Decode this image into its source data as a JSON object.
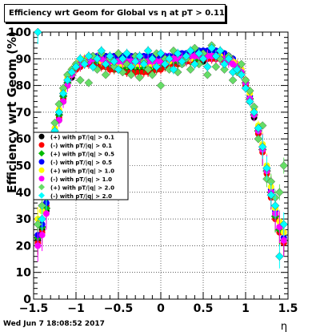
{
  "chart_data": {
    "type": "scatter",
    "title": "Efficiency wrt Geom for Global vs   η at pT > 0.11",
    "xlabel": "η",
    "ylabel": "Efficiency wrt Geom (%)",
    "xlim": [
      -1.5,
      1.5
    ],
    "ylim": [
      0,
      100
    ],
    "x_ticks": [
      -1.5,
      -1,
      -0.5,
      0,
      0.5,
      1,
      1.5
    ],
    "x_tick_labels": [
      "−1.5",
      "−1",
      "−0.5",
      "0",
      "0.5",
      "1",
      "1.5"
    ],
    "y_ticks": [
      0,
      10,
      20,
      30,
      40,
      50,
      60,
      70,
      80,
      90,
      100
    ],
    "y_tick_labels": [
      "0",
      "10",
      "20",
      "30",
      "40",
      "50",
      "60",
      "70",
      "80",
      "90",
      "100"
    ],
    "grid": true,
    "legend_position": "left-middle",
    "x": [
      -1.45,
      -1.4,
      -1.35,
      -1.3,
      -1.25,
      -1.2,
      -1.15,
      -1.1,
      -1.05,
      -1.0,
      -0.95,
      -0.9,
      -0.85,
      -0.8,
      -0.75,
      -0.7,
      -0.65,
      -0.6,
      -0.55,
      -0.5,
      -0.45,
      -0.4,
      -0.35,
      -0.3,
      -0.25,
      -0.2,
      -0.15,
      -0.1,
      -0.05,
      0.0,
      0.05,
      0.1,
      0.15,
      0.2,
      0.25,
      0.3,
      0.35,
      0.4,
      0.45,
      0.5,
      0.55,
      0.6,
      0.65,
      0.7,
      0.75,
      0.8,
      0.85,
      0.9,
      0.95,
      1.0,
      1.05,
      1.1,
      1.15,
      1.2,
      1.25,
      1.3,
      1.35,
      1.4,
      1.45
    ],
    "series": [
      {
        "name": "(+) with pT/|q| > 0.1",
        "color": "#000000",
        "values": [
          22,
          26,
          33,
          45,
          60,
          67,
          74,
          80,
          83,
          86,
          87,
          88,
          88,
          89,
          88,
          88,
          87,
          87,
          86,
          86,
          86,
          86,
          86,
          86,
          86,
          86,
          86,
          86,
          86,
          87,
          88,
          88,
          88,
          88,
          88,
          89,
          89,
          89,
          89,
          89,
          90,
          90,
          90,
          90,
          89,
          89,
          88,
          86,
          84,
          80,
          74,
          68,
          62,
          56,
          48,
          40,
          32,
          26,
          21
        ]
      },
      {
        "name": "(-) with pT/|q| > 0.1",
        "color": "#ff0000",
        "values": [
          21,
          25,
          35,
          46,
          61,
          68,
          75,
          80,
          84,
          86,
          87,
          88,
          88,
          89,
          88,
          87,
          87,
          86,
          86,
          86,
          86,
          85,
          85,
          85,
          85,
          85,
          85,
          85,
          86,
          86,
          87,
          88,
          88,
          88,
          89,
          89,
          89,
          89,
          89,
          90,
          90,
          90,
          90,
          90,
          89,
          89,
          88,
          87,
          84,
          80,
          75,
          69,
          62,
          55,
          47,
          38,
          30,
          25,
          21
        ]
      },
      {
        "name": "(+) with pT/|q| > 0.5",
        "color": "#00bb00",
        "values": [
          23,
          27,
          34,
          47,
          62,
          69,
          76,
          81,
          84,
          87,
          88,
          89,
          89,
          90,
          89,
          89,
          88,
          88,
          87,
          87,
          87,
          87,
          87,
          87,
          87,
          87,
          87,
          87,
          87,
          88,
          88,
          89,
          89,
          89,
          89,
          90,
          90,
          90,
          90,
          90,
          91,
          91,
          91,
          91,
          90,
          90,
          89,
          87,
          85,
          81,
          75,
          69,
          63,
          56,
          48,
          40,
          31,
          26,
          22
        ]
      },
      {
        "name": "(-) with pT/|q| > 0.5",
        "color": "#0000ff",
        "values": [
          24,
          28,
          36,
          48,
          63,
          70,
          77,
          82,
          85,
          88,
          89,
          90,
          90,
          91,
          91,
          91,
          91,
          91,
          91,
          91,
          91,
          91,
          91,
          91,
          91,
          91,
          91,
          91,
          91,
          91,
          91,
          91,
          91,
          92,
          92,
          92,
          92,
          92,
          93,
          93,
          93,
          93,
          93,
          92,
          92,
          91,
          90,
          88,
          86,
          82,
          76,
          70,
          64,
          57,
          49,
          41,
          33,
          27,
          23
        ]
      },
      {
        "name": "(+) with pT/|q| > 1.0",
        "color": "#ffff00",
        "values": [
          30,
          33,
          40,
          50,
          64,
          71,
          78,
          83,
          86,
          88,
          89,
          90,
          90,
          90,
          90,
          89,
          89,
          89,
          88,
          88,
          88,
          88,
          88,
          88,
          88,
          88,
          88,
          88,
          88,
          89,
          89,
          89,
          90,
          90,
          90,
          90,
          90,
          91,
          91,
          91,
          91,
          91,
          91,
          91,
          90,
          90,
          89,
          88,
          86,
          82,
          77,
          71,
          65,
          58,
          50,
          42,
          34,
          29,
          25
        ]
      },
      {
        "name": "(-) with pT/|q| > 1.0",
        "color": "#ff00ff",
        "values": [
          20,
          24,
          32,
          44,
          60,
          67,
          74,
          80,
          84,
          87,
          88,
          89,
          89,
          90,
          90,
          90,
          89,
          89,
          89,
          89,
          89,
          89,
          89,
          89,
          89,
          89,
          89,
          89,
          89,
          89,
          90,
          90,
          90,
          90,
          90,
          90,
          91,
          91,
          91,
          91,
          91,
          91,
          91,
          90,
          90,
          89,
          88,
          87,
          85,
          81,
          75,
          69,
          63,
          56,
          48,
          40,
          32,
          27,
          22
        ]
      },
      {
        "name": "(+) with pT/|q| > 2.0",
        "color": "#66dd66",
        "values": [
          28,
          35,
          42,
          52,
          66,
          73,
          79,
          84,
          86,
          88,
          82,
          89,
          81,
          91,
          86,
          92,
          84,
          90,
          87,
          92,
          85,
          88,
          84,
          91,
          83,
          89,
          86,
          84,
          92,
          80,
          90,
          86,
          93,
          85,
          88,
          90,
          86,
          94,
          88,
          92,
          84,
          95,
          87,
          90,
          86,
          91,
          82,
          85,
          88,
          82,
          78,
          72,
          60,
          65,
          45,
          44,
          38,
          40,
          50
        ]
      },
      {
        "name": "(-) with pT/|q| > 2.0",
        "color": "#00ffff",
        "values": [
          100,
          30,
          38,
          49,
          63,
          70,
          77,
          82,
          85,
          87,
          90,
          88,
          91,
          87,
          90,
          93,
          88,
          91,
          89,
          86,
          90,
          92,
          87,
          89,
          91,
          88,
          93,
          90,
          87,
          92,
          88,
          90,
          86,
          92,
          89,
          91,
          93,
          88,
          92,
          90,
          87,
          94,
          91,
          93,
          88,
          90,
          85,
          86,
          84,
          79,
          74,
          70,
          64,
          57,
          49,
          39,
          35,
          16,
          28
        ]
      }
    ]
  },
  "footer": {
    "timestamp": "Wed Jun  7 18:08:52 2017"
  }
}
